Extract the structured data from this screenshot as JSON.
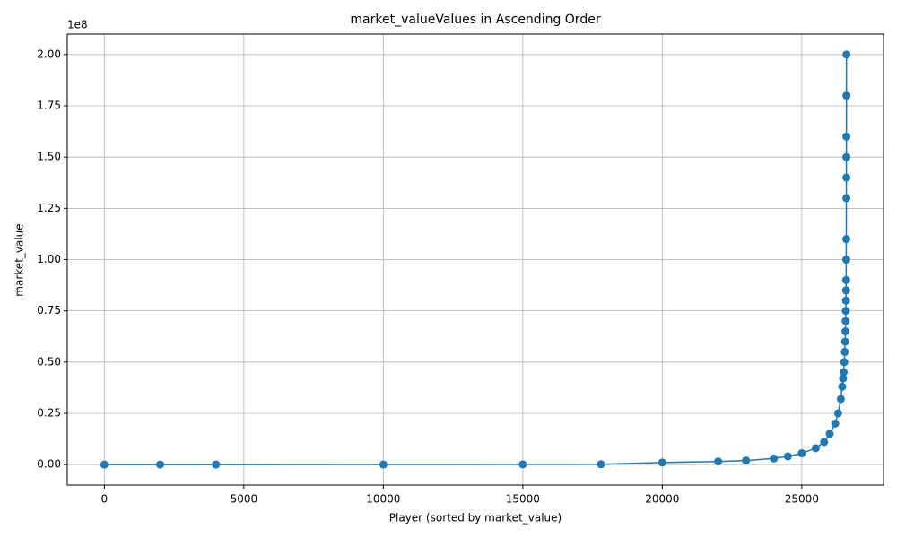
{
  "chart_data": {
    "type": "line",
    "title": "market_valueValues in Ascending Order",
    "xlabel": "Player (sorted by market_value)",
    "ylabel": "market_value",
    "y_offset_label": "1e8",
    "color": "#1f77b4",
    "grid": true,
    "markers": true,
    "x": [
      0,
      2000,
      4000,
      10000,
      15000,
      17800,
      20000,
      22000,
      23000,
      24000,
      24500,
      25000,
      25500,
      25800,
      26000,
      26200,
      26300,
      26400,
      26450,
      26480,
      26500,
      26520,
      26540,
      26555,
      26565,
      26572,
      26578,
      26583,
      26587,
      26590,
      26593,
      26595,
      26597,
      26598,
      26599,
      26600,
      26601,
      26602
    ],
    "values": [
      0,
      10000,
      25000,
      50000,
      100000,
      150000,
      1000000,
      1500000,
      2000000,
      3000000,
      4000000,
      5500000,
      8000000,
      11000000,
      15000000,
      20000000,
      25000000,
      32000000,
      38000000,
      42000000,
      45000000,
      50000000,
      55000000,
      60000000,
      65000000,
      70000000,
      75000000,
      80000000,
      85000000,
      90000000,
      100000000,
      110000000,
      130000000,
      140000000,
      150000000,
      160000000,
      180000000,
      200000000
    ],
    "xlim": [
      -1330,
      27930
    ],
    "ylim": [
      -10000000,
      210000000
    ],
    "xticks": [
      0,
      5000,
      10000,
      15000,
      20000,
      25000
    ],
    "yticks": [
      {
        "value": 0,
        "label": "0.00"
      },
      {
        "value": 25000000,
        "label": "0.25"
      },
      {
        "value": 50000000,
        "label": "0.50"
      },
      {
        "value": 75000000,
        "label": "0.75"
      },
      {
        "value": 100000000,
        "label": "1.00"
      },
      {
        "value": 125000000,
        "label": "1.25"
      },
      {
        "value": 150000000,
        "label": "1.50"
      },
      {
        "value": 175000000,
        "label": "1.75"
      },
      {
        "value": 200000000,
        "label": "2.00"
      }
    ]
  }
}
